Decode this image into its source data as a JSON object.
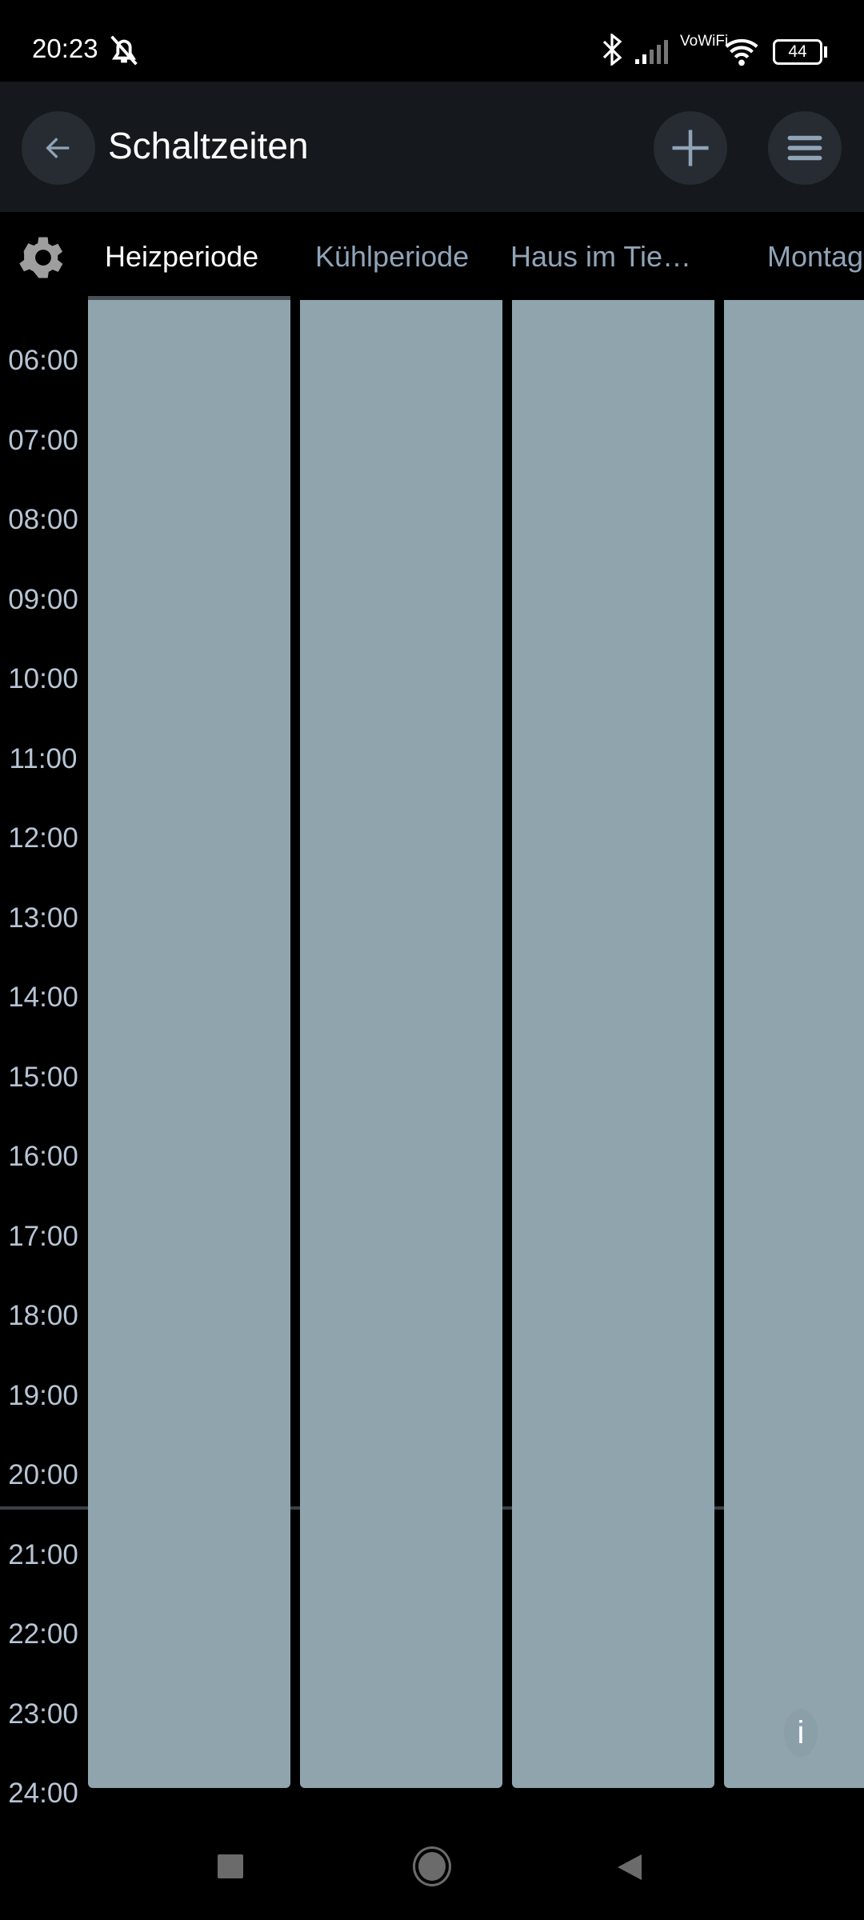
{
  "status_bar": {
    "time": "20:23",
    "battery": "44",
    "network": "VoWiFi"
  },
  "app_bar": {
    "title": "Schaltzeiten"
  },
  "tabs": [
    {
      "label": "Heizperiode",
      "active": true
    },
    {
      "label": "Kühlperiode",
      "active": false
    },
    {
      "label": "Haus im Tie…",
      "active": false
    },
    {
      "label": "Montag",
      "active": false
    }
  ],
  "time_labels": [
    "06:00",
    "07:00",
    "08:00",
    "09:00",
    "10:00",
    "11:00",
    "12:00",
    "13:00",
    "14:00",
    "15:00",
    "16:00",
    "17:00",
    "18:00",
    "19:00",
    "20:00",
    "21:00",
    "22:00",
    "23:00",
    "24:00"
  ],
  "colors": {
    "column": "#90a4ae",
    "appbar": "#15181c",
    "accent_text": "#90a4b8"
  },
  "info_button": {
    "label": "i"
  }
}
